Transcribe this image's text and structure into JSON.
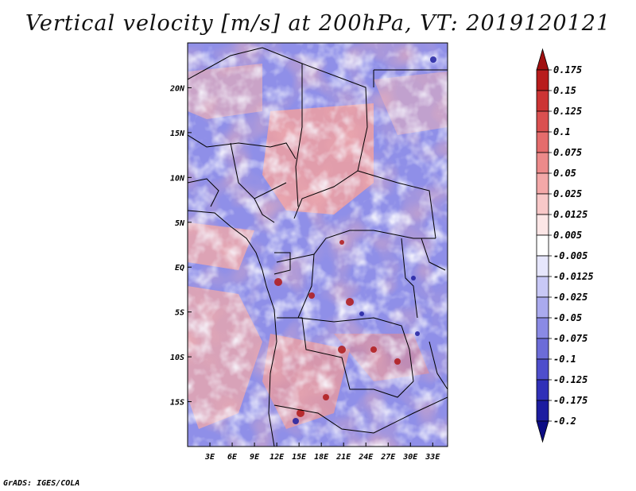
{
  "title": "Vertical velocity [m/s] at 200hPa, VT: 2019120121",
  "credit": "GrADS: IGES/COLA",
  "map": {
    "lat_labels": [
      "20N",
      "15N",
      "10N",
      "5N",
      "EQ",
      "5S",
      "10S",
      "15S"
    ],
    "lat_values": [
      20,
      15,
      10,
      5,
      0,
      -5,
      -10,
      -15
    ],
    "lon_labels": [
      "3E",
      "6E",
      "9E",
      "12E",
      "15E",
      "18E",
      "21E",
      "24E",
      "27E",
      "30E",
      "33E"
    ],
    "lon_values": [
      3,
      6,
      9,
      12,
      15,
      18,
      21,
      24,
      27,
      30,
      33
    ],
    "lon_range": [
      0,
      35
    ],
    "lat_range": [
      -20,
      25
    ]
  },
  "colorbar": {
    "labels": [
      "0.175",
      "0.15",
      "0.125",
      "0.1",
      "0.075",
      "0.05",
      "0.025",
      "0.0125",
      "0.005",
      "-0.005",
      "-0.0125",
      "-0.025",
      "-0.05",
      "-0.075",
      "-0.1",
      "-0.125",
      "-0.175",
      "-0.2"
    ],
    "colors": [
      "#a01010",
      "#b81c1c",
      "#cc3434",
      "#da5050",
      "#e46c6c",
      "#ec8a8a",
      "#f3a8a8",
      "#f8c8c8",
      "#fce6e6",
      "#ffffff",
      "#e6e6fc",
      "#c8c8f6",
      "#aaaaee",
      "#8a8ae4",
      "#6c6cd8",
      "#4e4ecc",
      "#3030b8",
      "#1c1ca0",
      "#0c0c84"
    ]
  }
}
